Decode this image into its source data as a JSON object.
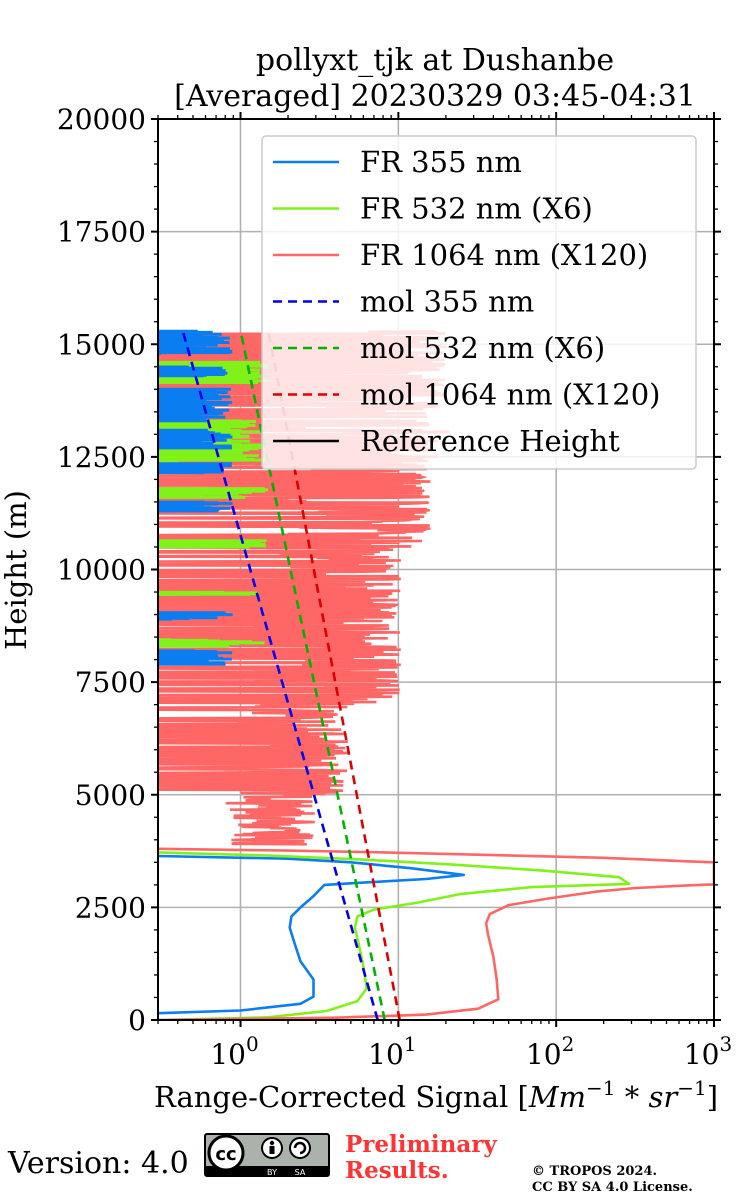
{
  "chart_data": {
    "type": "line",
    "title": "pollyxt_tjk at Dushanbe",
    "subtitle": "[Averaged] 20230329 03:45-04:31",
    "xlabel_text": "Range-Corrected Signal [",
    "xlabel_unit": "Mm",
    "xlabel_exp1": "−1",
    "xlabel_star": " * ",
    "xlabel_unit2": "sr",
    "xlabel_exp2": "−1",
    "xlabel_close": "]",
    "ylabel": "Height (m)",
    "xscale": "log",
    "xlim": [
      0.3,
      1000
    ],
    "ylim": [
      0,
      20000
    ],
    "xticks": [
      {
        "value": 1,
        "base": "10",
        "exp": "0"
      },
      {
        "value": 10,
        "base": "10",
        "exp": "1"
      },
      {
        "value": 100,
        "base": "10",
        "exp": "2"
      },
      {
        "value": 1000,
        "base": "10",
        "exp": "3"
      }
    ],
    "yticks": [
      {
        "value": 0,
        "label": "0"
      },
      {
        "value": 2500,
        "label": "2500"
      },
      {
        "value": 5000,
        "label": "5000"
      },
      {
        "value": 7500,
        "label": "7500"
      },
      {
        "value": 10000,
        "label": "10000"
      },
      {
        "value": 12500,
        "label": "12500"
      },
      {
        "value": 15000,
        "label": "15000"
      },
      {
        "value": 17500,
        "label": "17500"
      },
      {
        "value": 20000,
        "label": "20000"
      }
    ],
    "grid": true,
    "legend_position": "top-right",
    "series": [
      {
        "name": "FR 355 nm",
        "color": "#0a7ef0",
        "style": "solid",
        "points": [
          [
            0.3,
            150
          ],
          [
            1.0,
            210
          ],
          [
            2.4,
            360
          ],
          [
            2.9,
            520
          ],
          [
            2.9,
            900
          ],
          [
            2.4,
            1300
          ],
          [
            2.2,
            1700
          ],
          [
            2.05,
            2050
          ],
          [
            2.1,
            2300
          ],
          [
            2.4,
            2500
          ],
          [
            2.9,
            2750
          ],
          [
            3.4,
            3000
          ],
          [
            6,
            3050
          ],
          [
            15,
            3130
          ],
          [
            26,
            3220
          ],
          [
            12,
            3370
          ],
          [
            5,
            3500
          ],
          [
            2,
            3580
          ],
          [
            0.3,
            3640
          ]
        ]
      },
      {
        "name": "FR 532 nm (X6)",
        "color": "#80f21a",
        "style": "solid",
        "points": [
          [
            0.3,
            0
          ],
          [
            1.5,
            60
          ],
          [
            3.5,
            200
          ],
          [
            5.5,
            420
          ],
          [
            6.3,
            700
          ],
          [
            6.0,
            1200
          ],
          [
            5.6,
            1700
          ],
          [
            5.3,
            2050
          ],
          [
            5.5,
            2300
          ],
          [
            7,
            2450
          ],
          [
            13,
            2600
          ],
          [
            25,
            2800
          ],
          [
            70,
            2950
          ],
          [
            290,
            3020
          ],
          [
            250,
            3170
          ],
          [
            80,
            3320
          ],
          [
            22,
            3450
          ],
          [
            6,
            3560
          ],
          [
            1.5,
            3650
          ],
          [
            0.3,
            3720
          ]
        ]
      },
      {
        "name": "FR 1064 nm (X120)",
        "color": "#ff6666",
        "style": "solid",
        "points": [
          [
            0.3,
            0
          ],
          [
            4,
            50
          ],
          [
            15,
            120
          ],
          [
            32,
            250
          ],
          [
            43,
            460
          ],
          [
            42,
            900
          ],
          [
            40,
            1400
          ],
          [
            37,
            1900
          ],
          [
            36,
            2150
          ],
          [
            38,
            2350
          ],
          [
            50,
            2550
          ],
          [
            90,
            2700
          ],
          [
            180,
            2850
          ],
          [
            320,
            2930
          ],
          [
            700,
            2990
          ],
          [
            1000,
            3010
          ],
          [
            1000,
            3500
          ],
          [
            700,
            3520
          ],
          [
            200,
            3600
          ],
          [
            40,
            3660
          ],
          [
            8,
            3720
          ],
          [
            2,
            3760
          ],
          [
            0.3,
            3800
          ]
        ]
      },
      {
        "name": "mol 355 nm",
        "color": "#0000ee",
        "style": "dashed",
        "points": [
          [
            7.4,
            0
          ],
          [
            0.43,
            15300
          ]
        ]
      },
      {
        "name": "mol 532 nm (X6)",
        "color": "#00b300",
        "style": "dashed",
        "points": [
          [
            8.2,
            0
          ],
          [
            1.0,
            15300
          ]
        ]
      },
      {
        "name": "mol 1064 nm (X120)",
        "color": "#dd0000",
        "style": "dashed",
        "points": [
          [
            10.2,
            0
          ],
          [
            1.5,
            15300
          ]
        ]
      },
      {
        "name": "Reference Height",
        "color": "#000000",
        "style": "solid",
        "points": []
      }
    ]
  },
  "footer": {
    "version": "Version: 4.0",
    "cc_label": "cc",
    "cc_by": "BY",
    "cc_sa": "SA",
    "preliminary_line1": "Preliminary",
    "preliminary_line2": "Results.",
    "copyright_line1": "© TROPOS 2024.",
    "copyright_line2": "CC BY SA 4.0 License."
  }
}
